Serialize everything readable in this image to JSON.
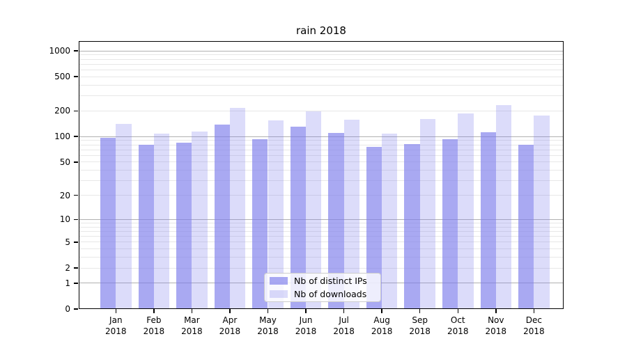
{
  "chart_data": {
    "type": "bar",
    "title": "rain 2018",
    "scale": "symlog-log1p",
    "grid": "both",
    "legend_position": "lower-center-left",
    "categories": [
      "Jan 2018",
      "Feb 2018",
      "Mar 2018",
      "Apr 2018",
      "May 2018",
      "Jun 2018",
      "Jul 2018",
      "Aug 2018",
      "Sep 2018",
      "Oct 2018",
      "Nov 2018",
      "Dec 2018"
    ],
    "series": [
      {
        "name": "Nb of distinct IPs",
        "color": "#7c7ceb",
        "alpha": 0.66,
        "values": [
          97,
          80,
          85,
          138,
          93,
          130,
          110,
          75,
          82,
          93,
          113,
          80
        ]
      },
      {
        "name": "Nb of downloads",
        "color": "#7c7ceb",
        "alpha": 0.27,
        "values": [
          142,
          109,
          114,
          217,
          154,
          198,
          159,
          108,
          160,
          186,
          235,
          177
        ]
      }
    ],
    "yticks": [
      0,
      1,
      2,
      5,
      10,
      20,
      50,
      100,
      200,
      500,
      1000
    ],
    "ylim": [
      0,
      1300
    ],
    "colors": {
      "bar_base": "#7c7ceb",
      "major_grid": "#b0b0b0",
      "minor_grid": "#e7e7e7",
      "spine": "#000000",
      "legend_border": "#cccccc"
    }
  }
}
